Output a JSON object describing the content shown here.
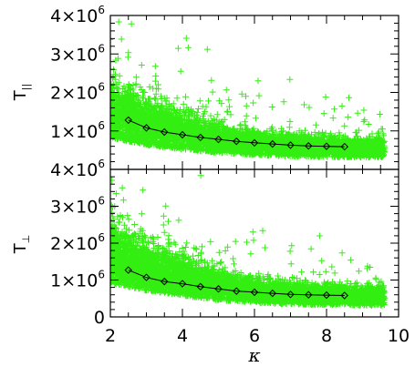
{
  "chart_data": [
    {
      "type": "scatter",
      "panel": "top",
      "ylabel": "T",
      "ylabel_sub": "||",
      "xlim": [
        2,
        10
      ],
      "ylim": [
        0,
        4000000
      ],
      "ytick_labels": [
        {
          "value": 1000000,
          "base": "1×10",
          "exp": "6"
        },
        {
          "value": 2000000,
          "base": "2×10",
          "exp": "6"
        },
        {
          "value": 3000000,
          "base": "3×10",
          "exp": "6"
        },
        {
          "value": 4000000,
          "base": "4×10",
          "exp": "6"
        }
      ],
      "scatter_color": "#33ee11",
      "scatter_marker": "plus",
      "scatter_cloud": {
        "x_range": [
          2.0,
          9.6
        ],
        "median_profile": [
          [
            2.0,
            1500000
          ],
          [
            3.0,
            1150000
          ],
          [
            4.0,
            950000
          ],
          [
            5.0,
            780000
          ],
          [
            6.0,
            680000
          ],
          [
            7.0,
            610000
          ],
          [
            8.0,
            580000
          ],
          [
            9.5,
            560000
          ]
        ]
      },
      "fit_line": {
        "x": [
          2.5,
          3.0,
          3.5,
          4.0,
          4.5,
          5.0,
          5.5,
          6.0,
          6.5,
          7.0,
          7.5,
          8.0,
          8.5
        ],
        "y": [
          1280000,
          1080000,
          970000,
          900000,
          830000,
          780000,
          730000,
          690000,
          660000,
          630000,
          610000,
          600000,
          590000
        ]
      }
    },
    {
      "type": "scatter",
      "panel": "bottom",
      "ylabel": "T",
      "ylabel_sub": "⊥",
      "xlabel": "κ",
      "xlim": [
        2,
        10
      ],
      "ylim": [
        0,
        4000000
      ],
      "xtick_labels": [
        "2",
        "4",
        "6",
        "8",
        "10"
      ],
      "xtick_values": [
        2,
        4,
        6,
        8,
        10
      ],
      "ytick_labels": [
        {
          "value": 0,
          "base": "0",
          "exp": ""
        },
        {
          "value": 1000000,
          "base": "1×10",
          "exp": "6"
        },
        {
          "value": 2000000,
          "base": "2×10",
          "exp": "6"
        },
        {
          "value": 3000000,
          "base": "3×10",
          "exp": "6"
        },
        {
          "value": 4000000,
          "base": "4×10",
          "exp": "6"
        }
      ],
      "scatter_color": "#33ee11",
      "scatter_marker": "plus",
      "scatter_cloud": {
        "x_range": [
          2.0,
          9.6
        ],
        "median_profile": [
          [
            2.0,
            1650000
          ],
          [
            3.0,
            1300000
          ],
          [
            4.0,
            1050000
          ],
          [
            5.0,
            830000
          ],
          [
            6.0,
            700000
          ],
          [
            7.0,
            620000
          ],
          [
            8.0,
            580000
          ],
          [
            9.5,
            560000
          ]
        ]
      },
      "fit_line": {
        "x": [
          2.5,
          3.0,
          3.5,
          4.0,
          4.5,
          5.0,
          5.5,
          6.0,
          6.5,
          7.0,
          7.5,
          8.0,
          8.5
        ],
        "y": [
          1270000,
          1070000,
          960000,
          900000,
          820000,
          760000,
          700000,
          670000,
          640000,
          610000,
          600000,
          590000,
          580000
        ]
      }
    }
  ]
}
